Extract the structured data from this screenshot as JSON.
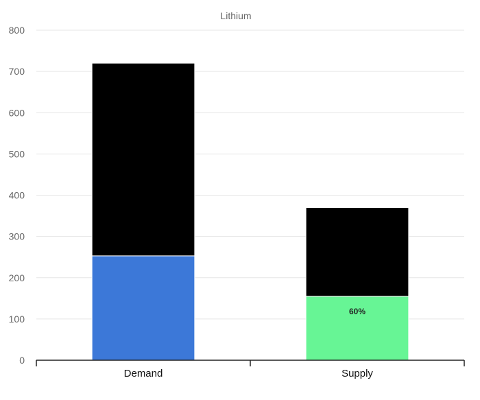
{
  "chart_data": {
    "type": "bar",
    "stacked": true,
    "title": "Lithium",
    "xlabel": "",
    "ylabel": "",
    "categories": [
      "Demand",
      "Supply"
    ],
    "series": [
      {
        "values": [
          253,
          155
        ],
        "colors": [
          "#3c78d8",
          "#67f595"
        ],
        "labels": [
          "",
          "60%"
        ]
      },
      {
        "values": [
          467,
          215
        ],
        "colors": [
          "#000000",
          "#000000"
        ],
        "labels": [
          "",
          ""
        ]
      }
    ],
    "ylim": [
      0,
      800
    ],
    "yticks": [
      0,
      100,
      200,
      300,
      400,
      500,
      600,
      700,
      800
    ],
    "grid": true,
    "legend": "none"
  }
}
